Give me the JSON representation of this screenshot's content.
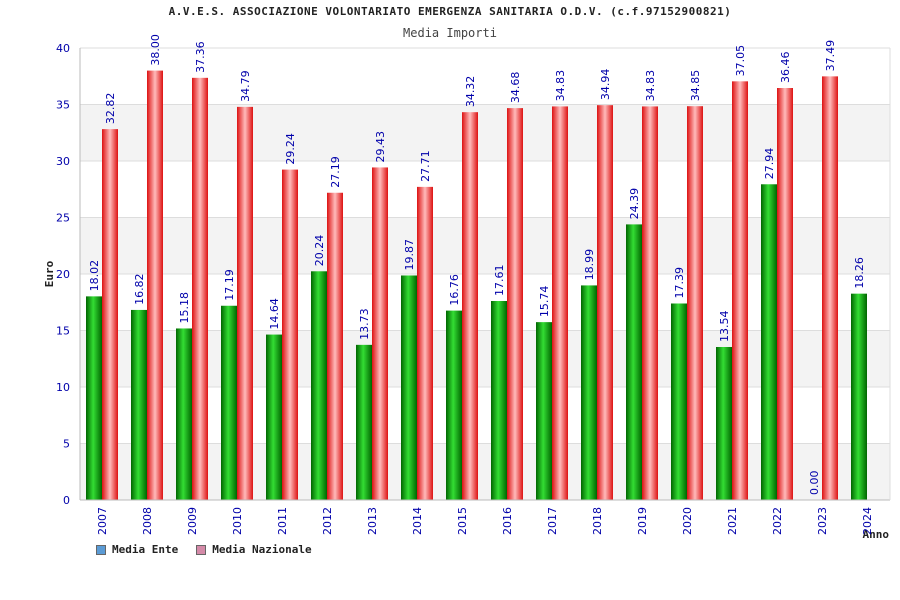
{
  "header": {
    "title": "A.V.E.S. ASSOCIAZIONE VOLONTARIATO EMERGENZA SANITARIA O.D.V. (c.f.97152900821)",
    "subtitle": "Media Importi"
  },
  "chart_data": {
    "type": "bar",
    "title": "Media Importi",
    "xlabel": "Anno",
    "ylabel": "Euro",
    "ylim": [
      0,
      40
    ],
    "yticks": [
      0,
      5,
      10,
      15,
      20,
      25,
      30,
      35,
      40
    ],
    "categories": [
      "2007",
      "2008",
      "2009",
      "2010",
      "2011",
      "2012",
      "2013",
      "2014",
      "2015",
      "2016",
      "2017",
      "2018",
      "2019",
      "2020",
      "2021",
      "2022",
      "2023",
      "2024"
    ],
    "series": [
      {
        "name": "Media Ente",
        "color": "#00aa00",
        "values": [
          18.02,
          16.82,
          15.18,
          17.19,
          14.64,
          20.24,
          13.73,
          19.87,
          16.76,
          17.61,
          15.74,
          18.99,
          24.39,
          17.39,
          13.54,
          27.94,
          0.0,
          18.26
        ],
        "labels": [
          "18.02",
          "16.82",
          "15.18",
          "17.19",
          "14.64",
          "20.24",
          "13.73",
          "19.87",
          "16.76",
          "17.61",
          "15.74",
          "18.99",
          "24.39",
          "17.39",
          "13.54",
          "27.94",
          "0.00",
          "18.26"
        ]
      },
      {
        "name": "Media Nazionale",
        "color": "#ee1111",
        "values": [
          32.82,
          38.0,
          37.36,
          34.79,
          29.24,
          27.19,
          29.43,
          27.71,
          34.32,
          34.68,
          34.83,
          34.94,
          34.83,
          34.85,
          37.05,
          36.46,
          37.49,
          null
        ],
        "labels": [
          "32.82",
          "38.00",
          "37.36",
          "34.79",
          "29.24",
          "27.19",
          "29.43",
          "27.71",
          "34.32",
          "34.68",
          "34.83",
          "34.94",
          "34.83",
          "34.85",
          "37.05",
          "36.46",
          "37.49",
          ""
        ]
      }
    ],
    "legend": {
      "position": "bottom-left",
      "entries": [
        {
          "label": "Media Ente",
          "color": "#5b9bd5"
        },
        {
          "label": "Media Nazionale",
          "color": "#d48aa8"
        }
      ]
    },
    "grid": true
  }
}
